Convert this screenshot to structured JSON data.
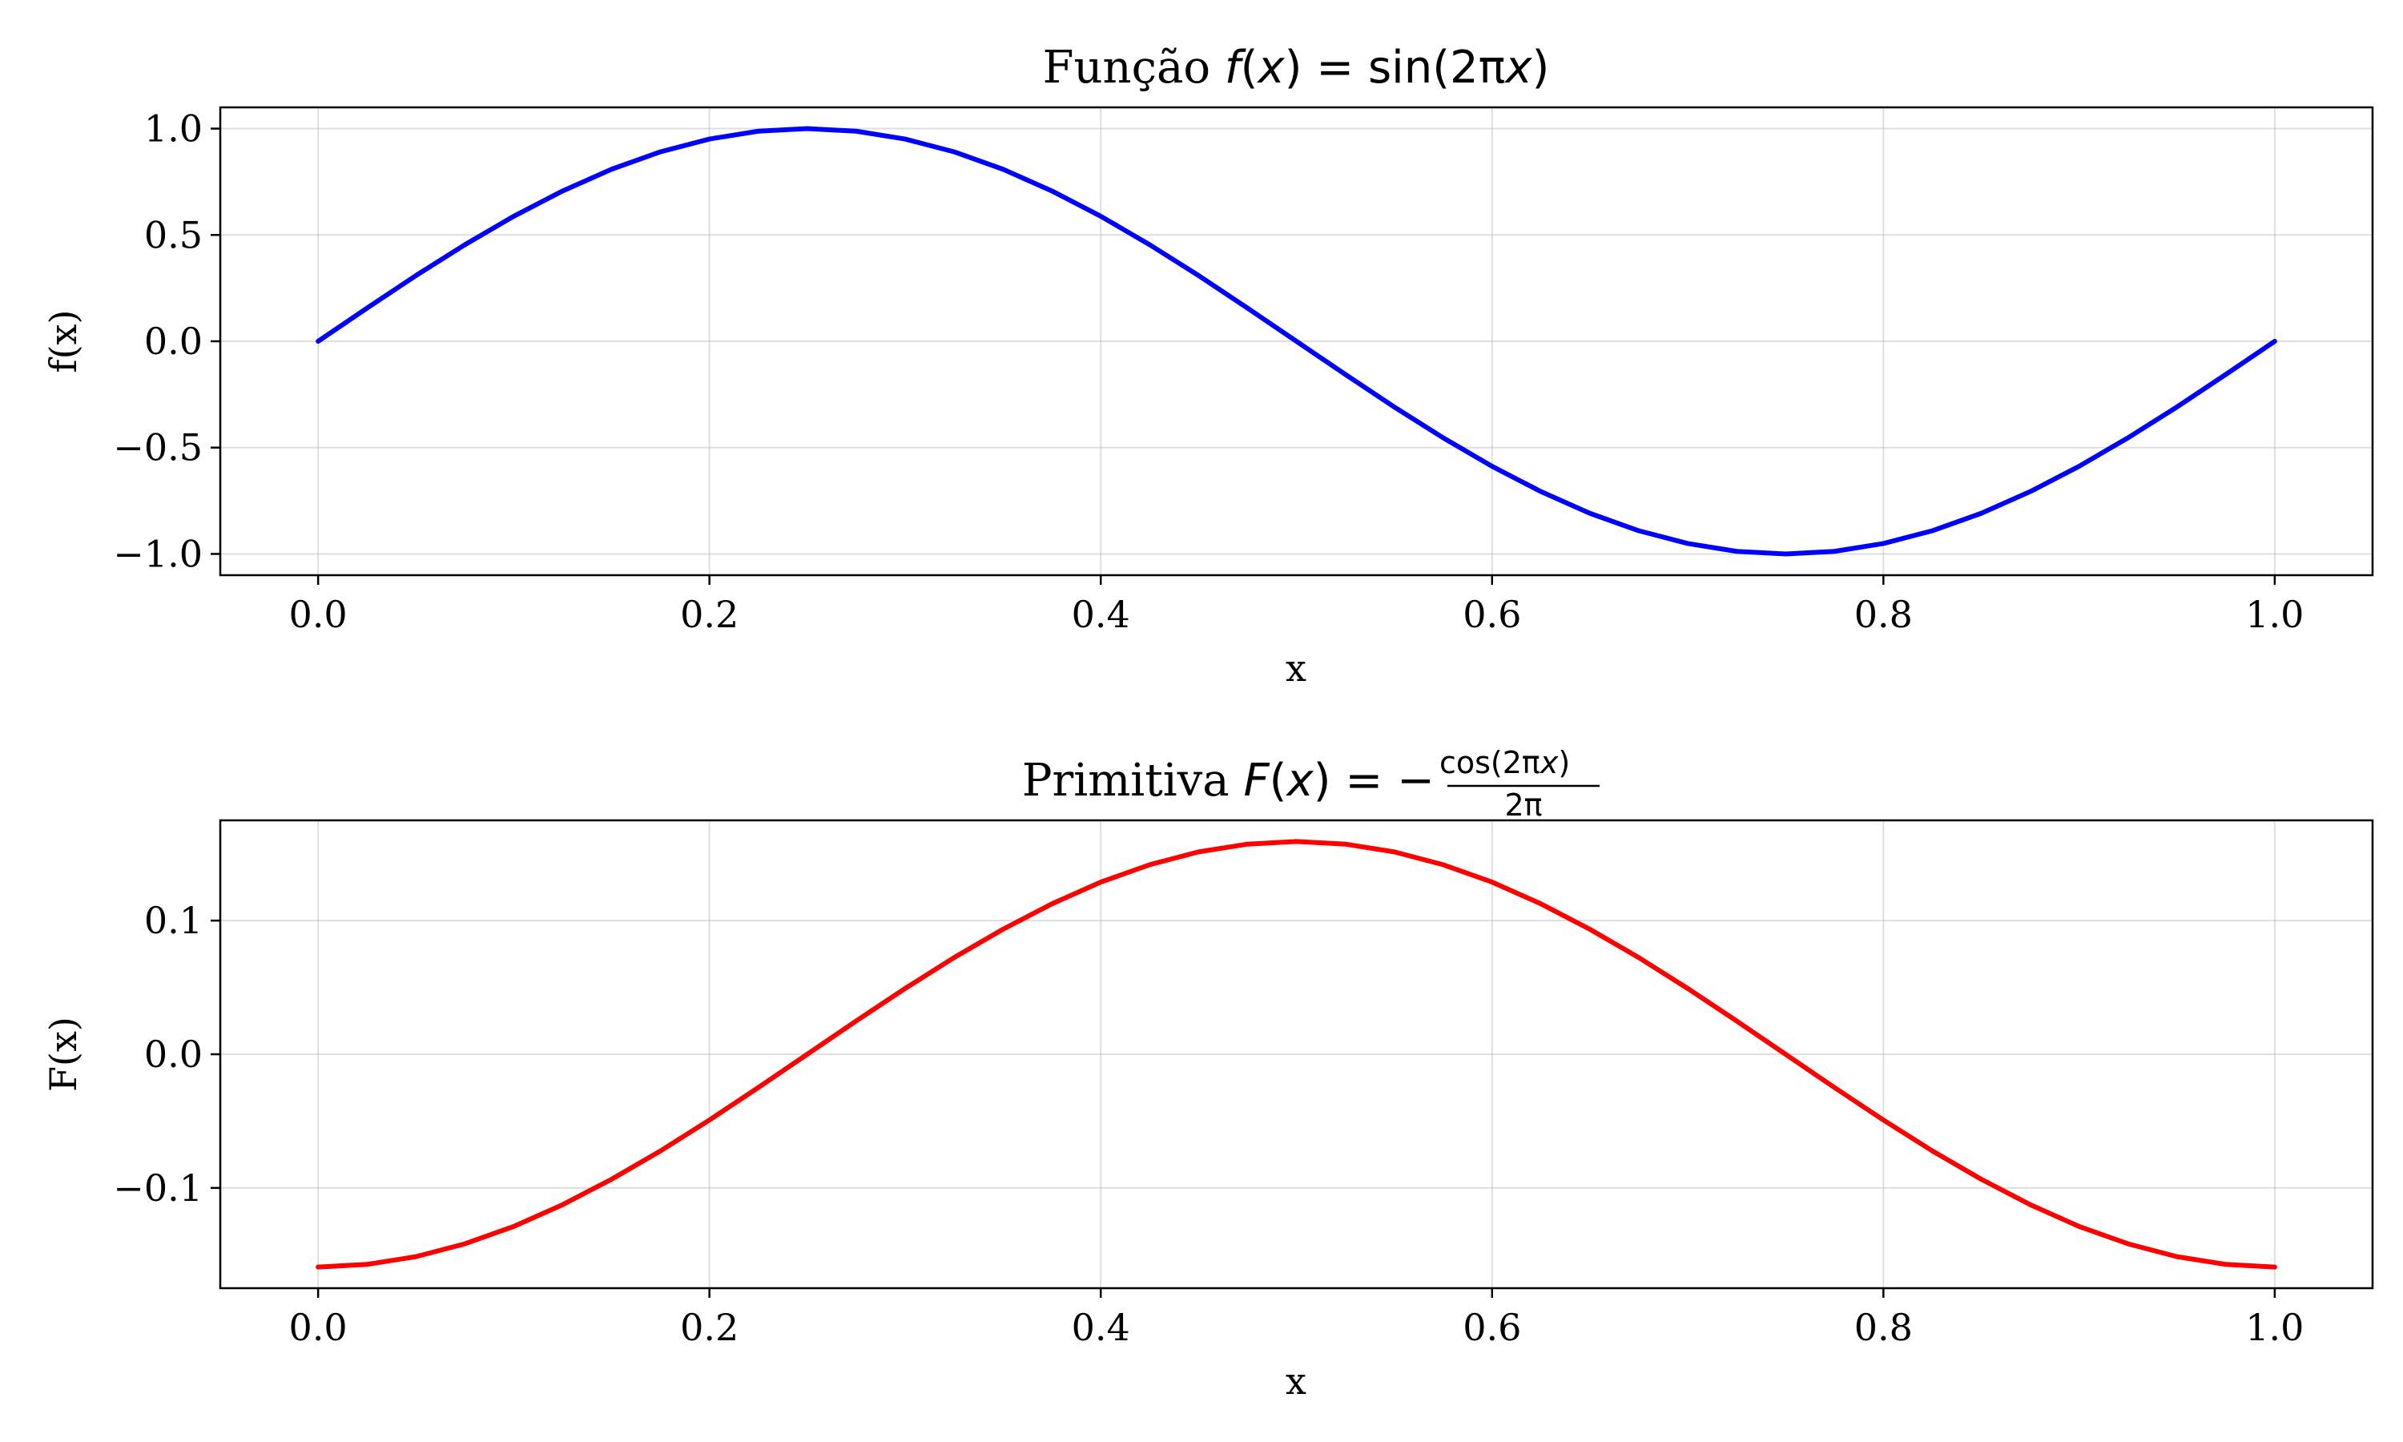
{
  "chart_data": [
    {
      "type": "line",
      "title": "Função f(x) = sin(2πx)",
      "title_parts": {
        "prefix": "Função ",
        "f": "f",
        "lp": "(",
        "x": "x",
        "rp": ")",
        "eq": " = sin(2π",
        "x2": "x",
        "close": ")"
      },
      "xlabel": "x",
      "ylabel": "f(x)",
      "xlim": [
        -0.05,
        1.05
      ],
      "ylim": [
        -1.1,
        1.1
      ],
      "xticks": [
        0.0,
        0.2,
        0.4,
        0.6,
        0.8,
        1.0
      ],
      "xtick_labels": [
        "0.0",
        "0.2",
        "0.4",
        "0.6",
        "0.8",
        "1.0"
      ],
      "yticks": [
        1.0,
        0.5,
        0.0,
        -0.5,
        -1.0
      ],
      "ytick_labels": [
        "1.0",
        "0.5",
        "0.0",
        "−0.5",
        "−1.0"
      ],
      "grid": true,
      "series": [
        {
          "name": "f(x)",
          "color": "#0000ff",
          "x": [
            0,
            0.025,
            0.05,
            0.075,
            0.1,
            0.125,
            0.15,
            0.175,
            0.2,
            0.225,
            0.25,
            0.275,
            0.3,
            0.325,
            0.35,
            0.375,
            0.4,
            0.425,
            0.45,
            0.475,
            0.5,
            0.525,
            0.55,
            0.575,
            0.6,
            0.625,
            0.65,
            0.675,
            0.7,
            0.725,
            0.75,
            0.775,
            0.8,
            0.825,
            0.85,
            0.875,
            0.9,
            0.925,
            0.95,
            0.975,
            1.0
          ],
          "y": [
            0,
            0.156,
            0.309,
            0.454,
            0.588,
            0.707,
            0.809,
            0.891,
            0.951,
            0.988,
            1.0,
            0.988,
            0.951,
            0.891,
            0.809,
            0.707,
            0.588,
            0.454,
            0.309,
            0.156,
            0,
            -0.156,
            -0.309,
            -0.454,
            -0.588,
            -0.707,
            -0.809,
            -0.891,
            -0.951,
            -0.988,
            -1.0,
            -0.988,
            -0.951,
            -0.891,
            -0.809,
            -0.707,
            -0.588,
            -0.454,
            -0.309,
            -0.156,
            0
          ]
        }
      ]
    },
    {
      "type": "line",
      "title": "Primitiva F(x) = −cos(2πx)/2π",
      "title_parts": {
        "prefix": "Primitiva ",
        "F": "F",
        "lp": "(",
        "x": "x",
        "rp": ")",
        "eq": " = −",
        "num_pre": "cos(2π",
        "num_x": "x",
        "num_post": ")",
        "den": "2π"
      },
      "xlabel": "x",
      "ylabel": "F(x)",
      "xlim": [
        -0.05,
        1.05
      ],
      "ylim": [
        -0.175,
        0.175
      ],
      "xticks": [
        0.0,
        0.2,
        0.4,
        0.6,
        0.8,
        1.0
      ],
      "xtick_labels": [
        "0.0",
        "0.2",
        "0.4",
        "0.6",
        "0.8",
        "1.0"
      ],
      "yticks": [
        0.1,
        0.0,
        -0.1
      ],
      "ytick_labels": [
        "0.1",
        "0.0",
        "−0.1"
      ],
      "grid": true,
      "series": [
        {
          "name": "F(x)",
          "color": "#ff0000",
          "x": [
            0,
            0.025,
            0.05,
            0.075,
            0.1,
            0.125,
            0.15,
            0.175,
            0.2,
            0.225,
            0.25,
            0.275,
            0.3,
            0.325,
            0.35,
            0.375,
            0.4,
            0.425,
            0.45,
            0.475,
            0.5,
            0.525,
            0.55,
            0.575,
            0.6,
            0.625,
            0.65,
            0.675,
            0.7,
            0.725,
            0.75,
            0.775,
            0.8,
            0.825,
            0.85,
            0.875,
            0.9,
            0.925,
            0.95,
            0.975,
            1.0
          ],
          "y": [
            -0.1592,
            -0.1572,
            -0.1514,
            -0.1418,
            -0.1288,
            -0.1125,
            -0.0935,
            -0.0723,
            -0.0492,
            -0.0249,
            0,
            0.0249,
            0.0492,
            0.0723,
            0.0935,
            0.1125,
            0.1288,
            0.1418,
            0.1514,
            0.1572,
            0.1592,
            0.1572,
            0.1514,
            0.1418,
            0.1288,
            0.1125,
            0.0935,
            0.0723,
            0.0492,
            0.0249,
            0,
            -0.0249,
            -0.0492,
            -0.0723,
            -0.0935,
            -0.1125,
            -0.1288,
            -0.1418,
            -0.1514,
            -0.1572,
            -0.1592
          ]
        }
      ]
    }
  ]
}
